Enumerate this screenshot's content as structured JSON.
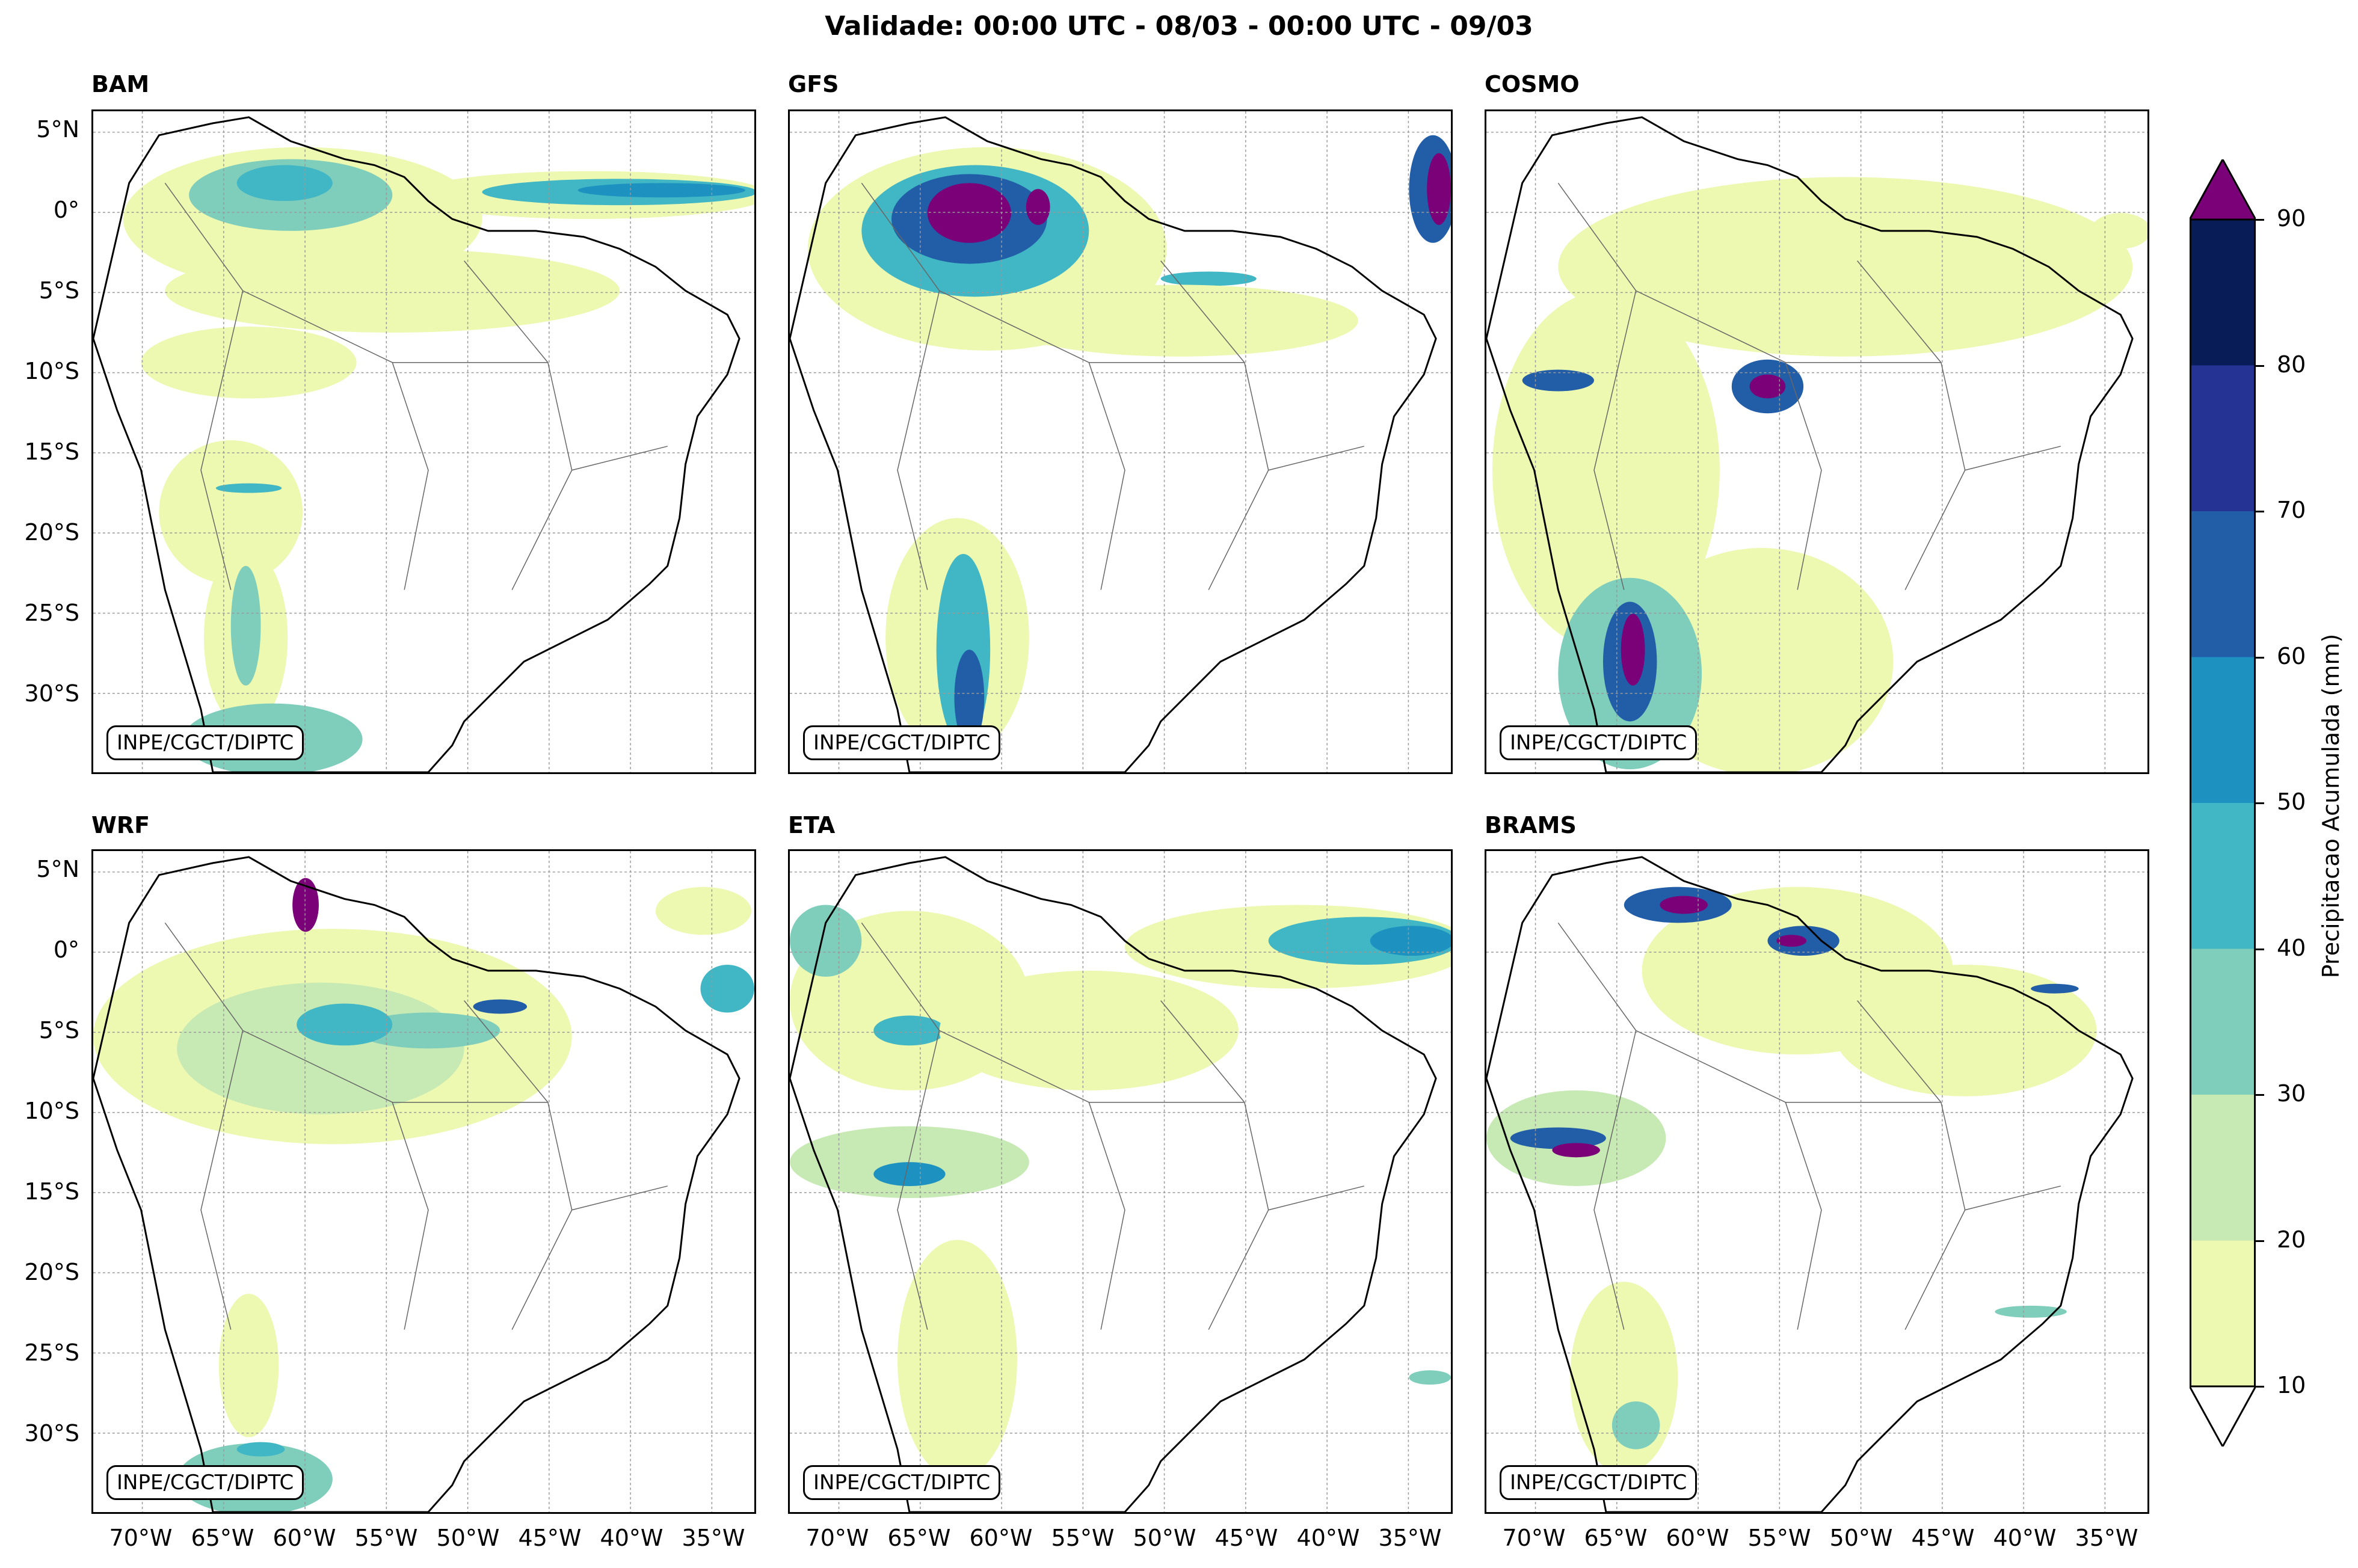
{
  "title": "Validade: 00:00 UTC - 08/03 - 00:00 UTC - 09/03",
  "credit": "INPE/CGCT/DIPTC",
  "panels": [
    {
      "name": "BAM"
    },
    {
      "name": "GFS"
    },
    {
      "name": "COSMO"
    },
    {
      "name": "WRF"
    },
    {
      "name": "ETA"
    },
    {
      "name": "BRAMS"
    }
  ],
  "lat_labels": [
    "5°N",
    "0°",
    "5°S",
    "10°S",
    "15°S",
    "20°S",
    "25°S",
    "30°S"
  ],
  "lon_labels": [
    "70°W",
    "65°W",
    "60°W",
    "55°W",
    "50°W",
    "45°W",
    "40°W",
    "35°W"
  ],
  "colorbar": {
    "label": "Precipitacao Acumulada (mm)",
    "ticks": [
      "10",
      "20",
      "30",
      "40",
      "50",
      "60",
      "70",
      "80",
      "90"
    ],
    "colors": [
      "#edf8b1",
      "#c7e9b4",
      "#7fcdbb",
      "#41b6c4",
      "#1d91c0",
      "#225ea8",
      "#253494",
      "#081d58"
    ],
    "over_color": "#7a0177",
    "under_color": "#ffffff"
  }
}
